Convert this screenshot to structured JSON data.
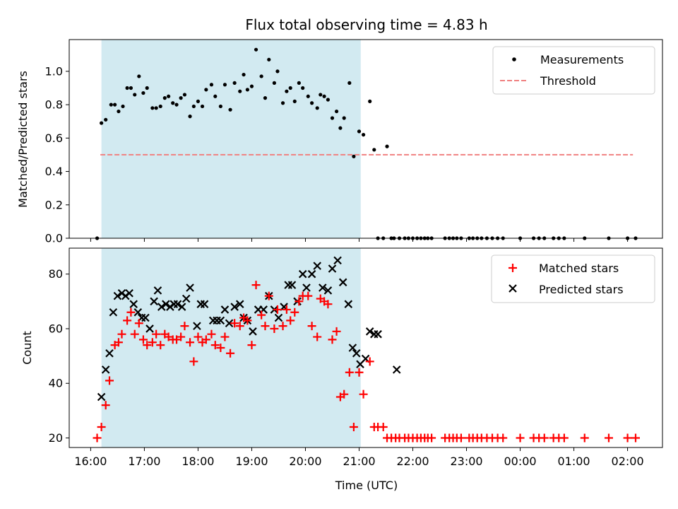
{
  "chart_data": [
    {
      "type": "scatter",
      "title": "Flux total observing time = 4.83 h",
      "xlabel": "",
      "ylabel": "Matched/Predicted stars",
      "xlim": [
        15.6,
        26.65
      ],
      "ylim": [
        0.0,
        1.19
      ],
      "yticks": [
        0.0,
        0.2,
        0.4,
        0.6,
        0.8,
        1.0
      ],
      "ytick_labels": [
        "0.0",
        "0.2",
        "0.4",
        "0.6",
        "0.8",
        "1.0"
      ],
      "xticks": [
        16,
        17,
        18,
        19,
        20,
        21,
        22,
        23,
        24,
        25,
        26
      ],
      "shade": {
        "x0": 16.2,
        "x1": 21.03,
        "color": "#add8e6"
      },
      "legend": [
        "Measurements",
        "Threshold"
      ],
      "threshold": {
        "value": 0.5,
        "x0": 16.18,
        "x1": 26.1,
        "color": "#f08080"
      },
      "series": [
        {
          "name": "Measurements",
          "x": [
            16.12,
            16.2,
            16.28,
            16.38,
            16.45,
            16.52,
            16.6,
            16.68,
            16.75,
            16.82,
            16.9,
            16.98,
            17.05,
            17.15,
            17.22,
            17.3,
            17.38,
            17.45,
            17.53,
            17.6,
            17.68,
            17.75,
            17.85,
            17.92,
            18.0,
            18.08,
            18.15,
            18.25,
            18.32,
            18.42,
            18.5,
            18.6,
            18.68,
            18.78,
            18.85,
            18.92,
            19.0,
            19.08,
            19.18,
            19.25,
            19.32,
            19.42,
            19.48,
            19.58,
            19.65,
            19.72,
            19.8,
            19.88,
            19.95,
            20.05,
            20.12,
            20.22,
            20.28,
            20.35,
            20.42,
            20.5,
            20.58,
            20.65,
            20.72,
            20.82,
            20.9,
            21.0,
            21.08,
            21.2,
            21.28,
            21.35,
            21.45,
            21.52,
            21.65,
            21.6,
            21.75,
            21.85,
            21.92,
            22.0,
            22.08,
            22.15,
            22.22,
            22.28,
            22.35,
            22.6,
            22.68,
            22.75,
            22.82,
            22.9,
            23.05,
            23.12,
            23.2,
            23.28,
            23.38,
            23.48,
            23.58,
            23.68,
            24.0,
            24.25,
            24.35,
            24.45,
            24.62,
            24.72,
            24.82,
            25.2,
            25.65,
            26.0,
            26.15
          ],
          "y": [
            0.0,
            0.69,
            0.71,
            0.8,
            0.8,
            0.76,
            0.79,
            0.9,
            0.9,
            0.86,
            0.97,
            0.87,
            0.9,
            0.78,
            0.78,
            0.79,
            0.84,
            0.85,
            0.81,
            0.8,
            0.84,
            0.86,
            0.73,
            0.79,
            0.82,
            0.79,
            0.89,
            0.92,
            0.85,
            0.79,
            0.92,
            0.77,
            0.93,
            0.88,
            0.98,
            0.89,
            0.91,
            1.13,
            0.97,
            0.84,
            1.07,
            0.93,
            1.0,
            0.81,
            0.88,
            0.9,
            0.82,
            0.93,
            0.9,
            0.85,
            0.81,
            0.78,
            0.86,
            0.85,
            0.83,
            0.72,
            0.76,
            0.66,
            0.72,
            0.93,
            0.49,
            0.64,
            0.62,
            0.82,
            0.53,
            0.0,
            0.0,
            0.55,
            0.0,
            0.0,
            0.0,
            0.0,
            0.0,
            0.0,
            0.0,
            0.0,
            0.0,
            0.0,
            0.0,
            0.0,
            0.0,
            0.0,
            0.0,
            0.0,
            0.0,
            0.0,
            0.0,
            0.0,
            0.0,
            0.0,
            0.0,
            0.0,
            0.0,
            0.0,
            0.0,
            0.0,
            0.0,
            0.0,
            0.0,
            0.0,
            0.0,
            0.0,
            0.0
          ]
        }
      ]
    },
    {
      "type": "scatter",
      "title": "",
      "xlabel": "Time (UTC)",
      "ylabel": "Count",
      "xlim": [
        15.6,
        26.65
      ],
      "ylim": [
        16.5,
        89.5
      ],
      "yticks": [
        20,
        40,
        60,
        80
      ],
      "ytick_labels": [
        "20",
        "40",
        "60",
        "80"
      ],
      "xticks": [
        16,
        17,
        18,
        19,
        20,
        21,
        22,
        23,
        24,
        25,
        26
      ],
      "xtick_labels": [
        "16:00",
        "17:00",
        "18:00",
        "19:00",
        "20:00",
        "21:00",
        "22:00",
        "23:00",
        "00:00",
        "01:00",
        "02:00"
      ],
      "shade": {
        "x0": 16.2,
        "x1": 21.03,
        "color": "#add8e6"
      },
      "legend": [
        "Matched stars",
        "Predicted stars"
      ],
      "series": [
        {
          "name": "Matched stars",
          "color": "#ff0000",
          "x": [
            16.12,
            16.2,
            16.28,
            16.35,
            16.45,
            16.52,
            16.58,
            16.68,
            16.75,
            16.82,
            16.9,
            16.98,
            17.05,
            17.15,
            17.22,
            17.3,
            17.38,
            17.45,
            17.53,
            17.6,
            17.68,
            17.75,
            17.85,
            17.92,
            18.0,
            18.08,
            18.15,
            18.25,
            18.32,
            18.42,
            18.5,
            18.6,
            18.68,
            18.78,
            18.85,
            18.92,
            19.0,
            19.08,
            19.18,
            19.25,
            19.32,
            19.42,
            19.48,
            19.58,
            19.65,
            19.72,
            19.8,
            19.88,
            19.95,
            20.05,
            20.12,
            20.22,
            20.28,
            20.35,
            20.42,
            20.5,
            20.58,
            20.65,
            20.72,
            20.82,
            20.9,
            21.0,
            21.08,
            21.2,
            21.28,
            21.35,
            21.45,
            21.52,
            21.6,
            21.68,
            21.75,
            21.85,
            21.92,
            22.0,
            22.08,
            22.15,
            22.22,
            22.28,
            22.35,
            22.6,
            22.68,
            22.75,
            22.82,
            22.9,
            23.05,
            23.12,
            23.2,
            23.28,
            23.38,
            23.48,
            23.58,
            23.68,
            24.0,
            24.25,
            24.35,
            24.45,
            24.62,
            24.72,
            24.82,
            25.2,
            25.65,
            26.0,
            26.15
          ],
          "y": [
            20,
            24,
            32,
            41,
            54,
            55,
            58,
            63,
            66,
            58,
            62,
            56,
            54,
            55,
            58,
            54,
            58,
            57,
            56,
            56,
            57,
            61,
            55,
            48,
            57,
            55,
            56,
            58,
            54,
            53,
            57,
            51,
            62,
            61,
            64,
            63,
            54,
            76,
            65,
            61,
            72,
            60,
            67,
            61,
            67,
            63,
            66,
            70,
            72,
            72,
            61,
            57,
            71,
            70,
            69,
            56,
            59,
            35,
            36,
            44,
            24,
            44,
            36,
            48,
            24,
            24,
            24,
            20,
            20,
            20,
            20,
            20,
            20,
            20,
            20,
            20,
            20,
            20,
            20,
            20,
            20,
            20,
            20,
            20,
            20,
            20,
            20,
            20,
            20,
            20,
            20,
            20,
            20,
            20,
            20,
            20,
            20,
            20,
            20,
            20,
            20,
            20,
            20
          ]
        },
        {
          "name": "Predicted stars",
          "color": "#000000",
          "x": [
            16.2,
            16.28,
            16.35,
            16.42,
            16.5,
            16.58,
            16.65,
            16.72,
            16.8,
            16.88,
            16.95,
            17.02,
            17.1,
            17.18,
            17.25,
            17.32,
            17.4,
            17.48,
            17.55,
            17.62,
            17.7,
            17.78,
            17.85,
            17.98,
            18.05,
            18.12,
            18.28,
            18.35,
            18.42,
            18.5,
            18.58,
            18.68,
            18.78,
            18.85,
            18.92,
            19.02,
            19.12,
            19.22,
            19.32,
            19.42,
            19.5,
            19.6,
            19.68,
            19.75,
            19.85,
            19.95,
            20.02,
            20.12,
            20.22,
            20.32,
            20.42,
            20.5,
            20.6,
            20.7,
            20.8,
            20.88,
            20.95,
            21.02,
            21.12,
            21.2,
            21.28,
            21.35,
            21.7
          ],
          "y": [
            35,
            45,
            51,
            66,
            72,
            73,
            72,
            73,
            69,
            66,
            64,
            64,
            60,
            70,
            74,
            68,
            69,
            68,
            69,
            69,
            68,
            71,
            75,
            61,
            69,
            69,
            63,
            63,
            63,
            67,
            62,
            68,
            69,
            64,
            63,
            59,
            67,
            67,
            72,
            67,
            64,
            68,
            76,
            76,
            70,
            80,
            75,
            80,
            83,
            75,
            74,
            82,
            85,
            77,
            69,
            53,
            51,
            47,
            49,
            59,
            58,
            58,
            45
          ]
        }
      ]
    }
  ]
}
